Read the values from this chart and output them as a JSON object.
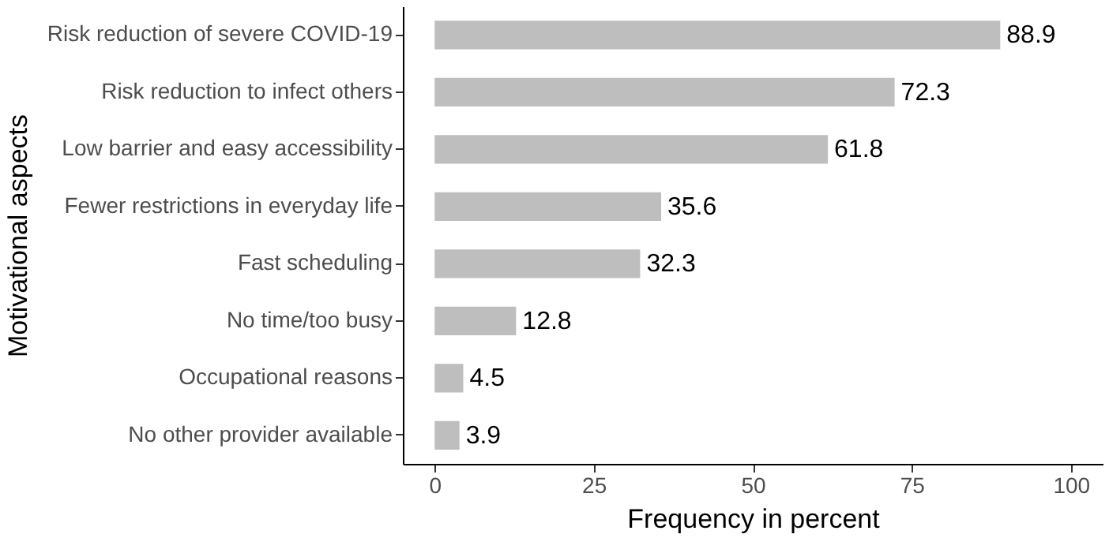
{
  "chart_data": {
    "type": "bar",
    "orientation": "horizontal",
    "xlabel": "Frequency in percent",
    "ylabel": "Motivational aspects",
    "categories": [
      "Risk reduction of severe COVID-19",
      "Risk reduction to infect others",
      "Low barrier and easy accessibility",
      "Fewer restrictions in everyday life",
      "Fast scheduling",
      "No time/too busy",
      "Occupational reasons",
      "No other provider available"
    ],
    "values": [
      88.9,
      72.3,
      61.8,
      35.6,
      32.3,
      12.8,
      4.5,
      3.9
    ],
    "color": "#bebebe",
    "xlim": [
      -5,
      105
    ],
    "xticks": [
      0,
      25,
      50,
      75,
      100
    ],
    "data_labels": true,
    "grid": false
  }
}
